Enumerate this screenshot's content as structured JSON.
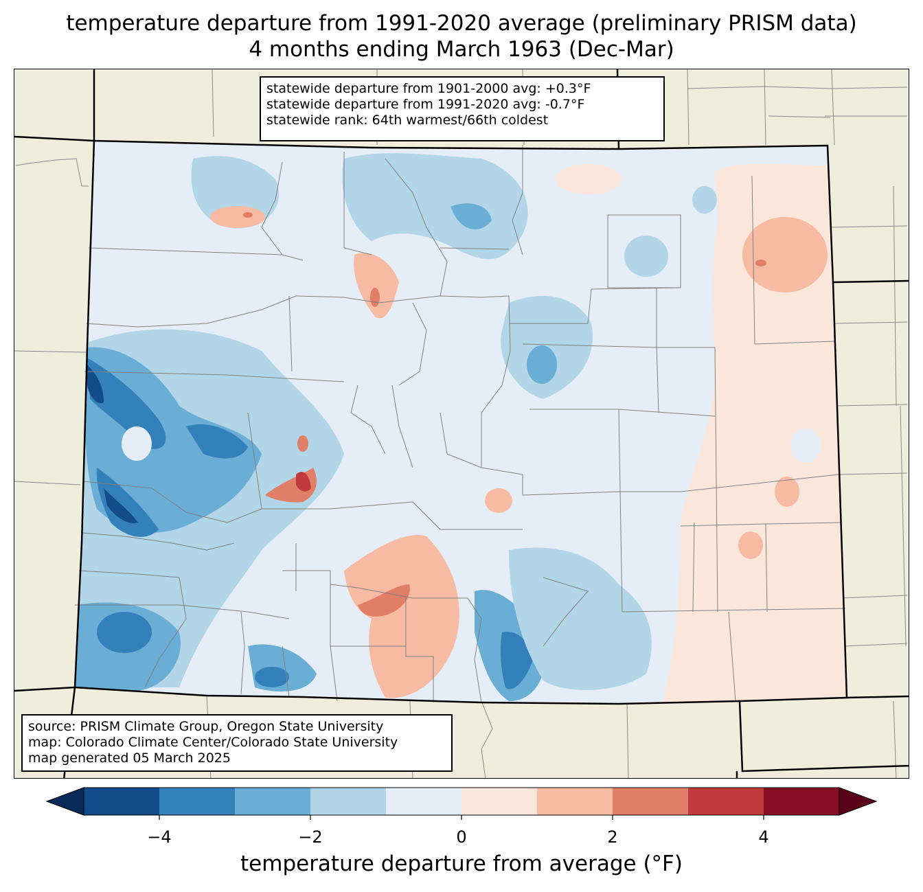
{
  "title": {
    "line1": "temperature departure from 1991-2020 average (preliminary PRISM data)",
    "line2": "4 months ending March 1963 (Dec-Mar)"
  },
  "stats": {
    "line1": "statewide departure from 1901-2000 avg: +0.3°F",
    "line2": "statewide departure from 1991-2020 avg: -0.7°F",
    "line3": "statewide rank: 64th warmest/66th coldest"
  },
  "source": {
    "line1": "source: PRISM Climate Group, Oregon State University",
    "line2": "map: Colorado Climate Center/Colorado State University",
    "line3": "map generated 05 March 2025"
  },
  "colorbar": {
    "label": "temperature departure from average (°F)",
    "ticks": [
      "−4",
      "−2",
      "0",
      "2",
      "4"
    ],
    "tick_values": [
      -4,
      -2,
      0,
      2,
      4
    ],
    "range": [
      -5,
      5
    ],
    "bins": [
      {
        "from": -5,
        "to": -4,
        "color": "#124c8a"
      },
      {
        "from": -4,
        "to": -3,
        "color": "#3480bb"
      },
      {
        "from": -3,
        "to": -2,
        "color": "#6aaed6"
      },
      {
        "from": -2,
        "to": -1,
        "color": "#b2d5e7"
      },
      {
        "from": -1,
        "to": 0,
        "color": "#e5eef6"
      },
      {
        "from": 0,
        "to": 1,
        "color": "#fbe6dc"
      },
      {
        "from": 1,
        "to": 2,
        "color": "#f7bba3"
      },
      {
        "from": 2,
        "to": 3,
        "color": "#e17e67"
      },
      {
        "from": 3,
        "to": 4,
        "color": "#c13a3d"
      },
      {
        "from": 4,
        "to": 5,
        "color": "#870d25"
      }
    ],
    "under_color": "#082a5a",
    "over_color": "#5a0217"
  },
  "colors": {
    "background_land": "#efeddc",
    "state_border": "#000000",
    "county_border": "#808080"
  }
}
